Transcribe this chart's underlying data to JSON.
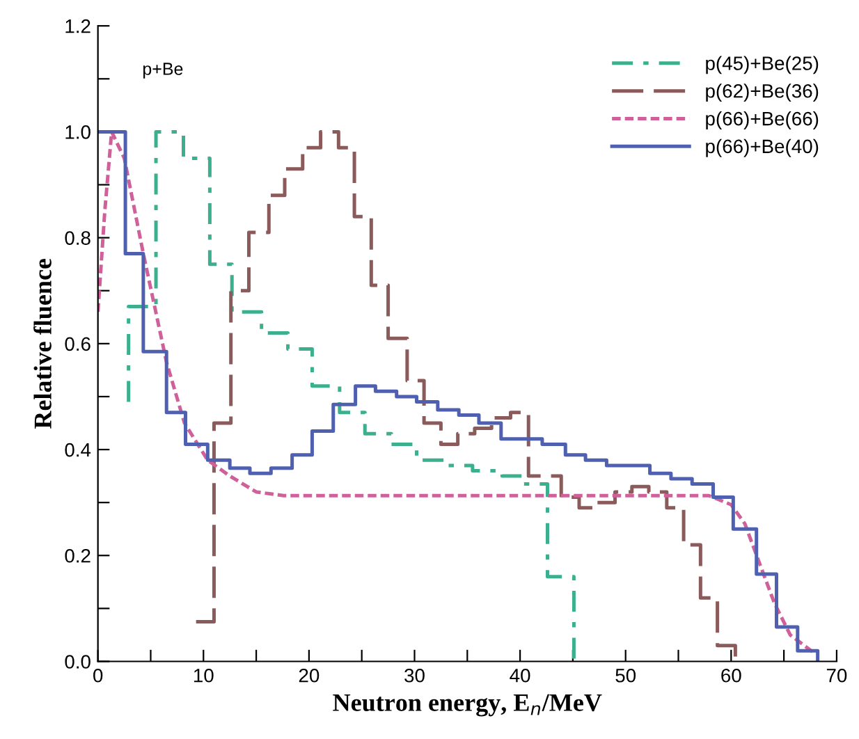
{
  "chart_data": {
    "type": "step",
    "xlabel": "Neutron energy, E$_{n}$/MeV",
    "ylabel": "Relative fluence",
    "annotations": [
      {
        "text": "p+Be"
      }
    ],
    "xlim": [
      0,
      70
    ],
    "ylim": [
      0,
      1.2
    ],
    "xticks": [
      0,
      10,
      20,
      30,
      40,
      50,
      60,
      70,
      {
        "value": 5,
        "label": null
      },
      {
        "value": 15,
        "label": null
      },
      {
        "value": 25,
        "label": null
      },
      {
        "value": 35,
        "label": null
      },
      {
        "value": 45,
        "label": null
      },
      {
        "value": 55,
        "label": null
      },
      {
        "value": 65,
        "label": null
      }
    ],
    "yticks": [
      {
        "value": 0,
        "label": "0.0"
      },
      {
        "value": 0.2,
        "label": "0.2"
      },
      {
        "value": 0.4,
        "label": "0.4"
      },
      {
        "value": 0.6,
        "label": "0.6"
      },
      {
        "value": 0.8,
        "label": "0.8"
      },
      {
        "value": 1.0,
        "label": "1.0"
      },
      {
        "value": 1.2,
        "label": "1.2"
      },
      {
        "value": 0.1,
        "label": null
      },
      {
        "value": 0.3,
        "label": null
      },
      {
        "value": 0.5,
        "label": null
      },
      {
        "value": 0.7,
        "label": null
      },
      {
        "value": 0.9,
        "label": null
      },
      {
        "value": 1.1,
        "label": null
      }
    ],
    "grid": false,
    "legend": "top right",
    "series": [
      {
        "name": "p(45)+Be(25)",
        "color": "#3cb08e",
        "line_style": "dashdot",
        "x": [
          2.9,
          2.9,
          5.5,
          8.1,
          10.6,
          12.7,
          15.5,
          18.0,
          20.3,
          22.9,
          25.3,
          27.8,
          30.2,
          33.0,
          35.5,
          38.3,
          40.2,
          42.6,
          45.1
        ],
        "values": [
          0.49,
          0.67,
          1.0,
          0.95,
          0.75,
          0.66,
          0.62,
          0.59,
          0.52,
          0.47,
          0.43,
          0.41,
          0.38,
          0.37,
          0.36,
          0.35,
          0.335,
          0.16,
          0.0
        ]
      },
      {
        "name": "p(62)+Be(36)",
        "color": "#8b5a5a",
        "line_style": "longdash",
        "x": [
          9.3,
          11.0,
          12.6,
          14.3,
          16.2,
          17.7,
          19.4,
          21.1,
          22.8,
          24.3,
          25.9,
          27.5,
          29.3,
          30.9,
          32.5,
          34.1,
          35.7,
          37.3,
          39.1,
          40.8,
          42.4,
          43.9,
          45.6,
          47.3,
          49.0,
          50.6,
          52.2,
          53.9,
          55.5,
          57.1,
          58.7,
          60.4
        ],
        "values": [
          0.075,
          0.45,
          0.7,
          0.81,
          0.88,
          0.93,
          0.97,
          1.0,
          0.97,
          0.84,
          0.71,
          0.61,
          0.53,
          0.45,
          0.41,
          0.43,
          0.44,
          0.46,
          0.47,
          0.35,
          0.35,
          0.31,
          0.29,
          0.3,
          0.32,
          0.33,
          0.32,
          0.29,
          0.22,
          0.12,
          0.03,
          0.0
        ]
      },
      {
        "name": "p(66)+Be(66)",
        "color": "#d0609a",
        "type": "line",
        "line_style": "dashed",
        "x": [
          0,
          0.65,
          1.3,
          2.5,
          4.3,
          6.5,
          8.2,
          10.4,
          12.5,
          15,
          17.6,
          30,
          45,
          57.9,
          60.0,
          61.3,
          62.6,
          64.1,
          65.6,
          67.8
        ],
        "values": [
          0.66,
          0.85,
          1.0,
          0.95,
          0.77,
          0.565,
          0.45,
          0.38,
          0.35,
          0.32,
          0.313,
          0.313,
          0.313,
          0.313,
          0.296,
          0.26,
          0.19,
          0.11,
          0.05,
          0.017
        ]
      },
      {
        "name": "p(66)+Be(40)",
        "color": "#5060b0",
        "line_style": "solid",
        "x": [
          0,
          2.6,
          4.3,
          6.5,
          8.3,
          10.4,
          12.5,
          14.4,
          16.4,
          18.4,
          20.3,
          22.3,
          24.4,
          26.3,
          28.3,
          30.2,
          32.2,
          34.2,
          36.1,
          38.2,
          42.1,
          44.3,
          46.2,
          48.2,
          52.3,
          54.3,
          56.3,
          58.3,
          60.2,
          62.4,
          64.3,
          66.3,
          68.2
        ],
        "values": [
          1.0,
          0.77,
          0.585,
          0.47,
          0.41,
          0.38,
          0.365,
          0.355,
          0.365,
          0.39,
          0.435,
          0.485,
          0.52,
          0.51,
          0.5,
          0.49,
          0.475,
          0.465,
          0.45,
          0.42,
          0.41,
          0.39,
          0.38,
          0.37,
          0.355,
          0.345,
          0.335,
          0.31,
          0.25,
          0.165,
          0.065,
          0.02,
          0.0
        ]
      }
    ]
  }
}
